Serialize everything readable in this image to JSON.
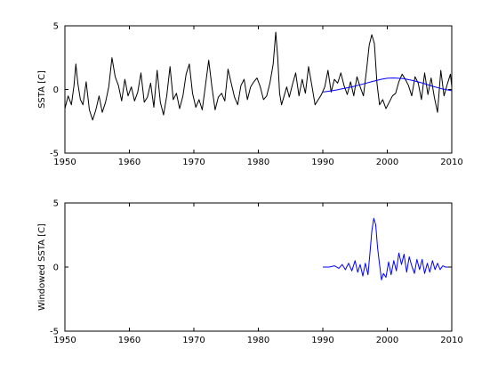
{
  "chart_data": [
    {
      "type": "line",
      "title": "",
      "xlabel": "",
      "ylabel": "SSTA [C]",
      "xlim": [
        1950,
        2010
      ],
      "ylim": [
        -5,
        5
      ],
      "xticks": [
        1950,
        1960,
        1970,
        1980,
        1990,
        2000,
        2010
      ],
      "yticks": [
        -5,
        0,
        5
      ],
      "grid": false,
      "series": [
        {
          "color": "#000000",
          "x": [
            1950,
            1950.5,
            1951,
            1951.4,
            1951.7,
            1952,
            1952.4,
            1952.8,
            1953.3,
            1953.8,
            1954.3,
            1954.8,
            1955.3,
            1955.8,
            1956.3,
            1956.8,
            1957.3,
            1957.8,
            1958.3,
            1958.8,
            1959.3,
            1959.8,
            1960.3,
            1960.8,
            1961.3,
            1961.8,
            1962.3,
            1962.8,
            1963.3,
            1963.8,
            1964.3,
            1964.8,
            1965.3,
            1965.8,
            1966.3,
            1966.8,
            1967.3,
            1967.8,
            1968.3,
            1968.8,
            1969.3,
            1969.8,
            1970.3,
            1970.8,
            1971.3,
            1971.8,
            1972.3,
            1972.8,
            1973.3,
            1973.8,
            1974.3,
            1974.8,
            1975.3,
            1975.8,
            1976.3,
            1976.8,
            1977.3,
            1977.8,
            1978.3,
            1978.8,
            1979.3,
            1979.8,
            1980.3,
            1980.8,
            1981.3,
            1981.8,
            1982.3,
            1982.7,
            1983.0,
            1983.3,
            1983.6,
            1984,
            1984.4,
            1984.8,
            1985.3,
            1985.8,
            1986.3,
            1986.8,
            1987.3,
            1987.8,
            1988.3,
            1988.8,
            1989.3,
            1989.8,
            1990.3,
            1990.8,
            1991.3,
            1991.8,
            1992.3,
            1992.8,
            1993.3,
            1993.8,
            1994.3,
            1994.8,
            1995.3,
            1995.8,
            1996.3,
            1996.8,
            1997.2,
            1997.6,
            1998.0,
            1998.4,
            1998.8,
            1999.3,
            1999.8,
            2000.3,
            2000.8,
            2001.3,
            2001.8,
            2002.3,
            2002.8,
            2003.3,
            2003.8,
            2004.3,
            2004.8,
            2005.3,
            2005.8,
            2006.3,
            2006.8,
            2007.3,
            2007.8,
            2008.3,
            2008.8,
            2009.3,
            2009.8,
            2010
          ],
          "y": [
            -1.5,
            -0.5,
            -1.2,
            0.3,
            2.0,
            0.5,
            -0.8,
            -1.2,
            0.6,
            -1.6,
            -2.4,
            -1.6,
            -0.5,
            -1.8,
            -1.0,
            0.2,
            2.5,
            1.0,
            0.3,
            -0.9,
            0.8,
            -0.5,
            0.2,
            -0.9,
            -0.2,
            1.3,
            -1.0,
            -0.6,
            0.5,
            -1.4,
            1.5,
            -1.0,
            -2.0,
            -0.5,
            1.8,
            -0.8,
            -0.3,
            -1.5,
            -0.5,
            1.2,
            2.0,
            -0.3,
            -1.4,
            -0.8,
            -1.6,
            0.3,
            2.3,
            0.2,
            -1.6,
            -0.6,
            -0.3,
            -0.9,
            1.6,
            0.5,
            -0.6,
            -1.2,
            0.3,
            0.8,
            -0.8,
            0.2,
            0.6,
            0.9,
            0.2,
            -0.8,
            -0.5,
            0.5,
            2.0,
            4.5,
            2.5,
            -0.3,
            -1.2,
            -0.5,
            0.2,
            -0.6,
            0.4,
            1.3,
            -0.5,
            0.8,
            -0.3,
            1.8,
            0.3,
            -1.2,
            -0.8,
            -0.4,
            0.2,
            1.5,
            -0.2,
            0.8,
            0.5,
            1.3,
            0.3,
            -0.4,
            0.6,
            -0.5,
            1.0,
            0.2,
            -0.5,
            1.6,
            3.5,
            4.3,
            3.6,
            0.5,
            -1.2,
            -0.8,
            -1.5,
            -1.0,
            -0.5,
            -0.3,
            0.6,
            1.2,
            0.8,
            0.3,
            -0.5,
            1.0,
            0.5,
            -0.8,
            1.3,
            -0.4,
            0.9,
            -0.6,
            -1.8,
            1.5,
            -0.5,
            0.4,
            1.2,
            0.2
          ]
        },
        {
          "color": "#0000ff",
          "x": [
            1990,
            1991.5,
            1993,
            1994.5,
            1996,
            1997.5,
            1999,
            2000,
            2001,
            2002.5,
            2004,
            2005.5,
            2007,
            2008.5,
            2010
          ],
          "y": [
            -0.2,
            -0.1,
            0.05,
            0.2,
            0.4,
            0.6,
            0.8,
            0.88,
            0.9,
            0.85,
            0.7,
            0.5,
            0.25,
            0.05,
            -0.1
          ]
        }
      ]
    },
    {
      "type": "line",
      "title": "",
      "xlabel": "",
      "ylabel": "Windowed SSTA [C]",
      "xlim": [
        1950,
        2010
      ],
      "ylim": [
        -5,
        5
      ],
      "xticks": [
        1950,
        1960,
        1970,
        1980,
        1990,
        2000,
        2010
      ],
      "yticks": [
        -5,
        0,
        5
      ],
      "grid": false,
      "series": [
        {
          "color": "#0000ff",
          "x": [
            1990,
            1991,
            1991.8,
            1992.5,
            1993,
            1993.5,
            1994,
            1994.5,
            1995,
            1995.4,
            1995.8,
            1996.2,
            1996.6,
            1997.0,
            1997.3,
            1997.6,
            1997.9,
            1998.2,
            1998.5,
            1998.8,
            1999.1,
            1999.4,
            1999.8,
            2000.2,
            2000.6,
            2001.0,
            2001.4,
            2001.8,
            2002.2,
            2002.6,
            2003.0,
            2003.4,
            2003.8,
            2004.2,
            2004.6,
            2005.0,
            2005.4,
            2005.8,
            2006.2,
            2006.6,
            2007.0,
            2007.4,
            2007.8,
            2008.2,
            2008.6,
            2009,
            2009.5,
            2010
          ],
          "y": [
            0,
            0,
            0.1,
            -0.1,
            0.2,
            -0.2,
            0.3,
            -0.3,
            0.5,
            -0.4,
            0.2,
            -0.7,
            0.3,
            -0.6,
            1.0,
            2.8,
            3.8,
            3.3,
            1.5,
            0.2,
            -1.0,
            -0.5,
            -0.8,
            0.4,
            -0.6,
            0.5,
            -0.3,
            1.1,
            0.2,
            1.0,
            -0.4,
            0.8,
            0.1,
            -0.5,
            0.6,
            -0.2,
            0.6,
            -0.5,
            0.3,
            -0.4,
            0.5,
            -0.2,
            0.3,
            -0.2,
            0.1,
            0,
            0,
            0
          ]
        }
      ]
    }
  ]
}
